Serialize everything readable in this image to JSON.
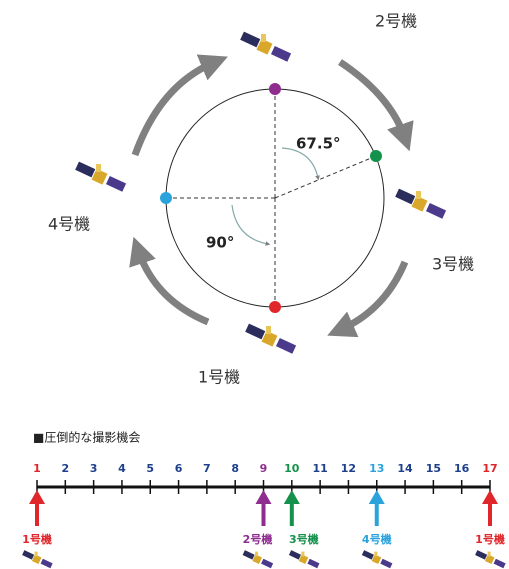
{
  "orbit": {
    "satellites": [
      "2号機",
      "3号機",
      "1号機",
      "4号機"
    ],
    "angles": [
      "67.5°",
      "90°"
    ]
  },
  "timeline": {
    "title": "■圧倒的な撮影機会",
    "ticks": [
      1,
      2,
      3,
      4,
      5,
      6,
      7,
      8,
      9,
      10,
      11,
      12,
      13,
      14,
      15,
      16,
      17
    ],
    "arrows": [
      {
        "label": "1号機",
        "color": "#e0262b"
      },
      {
        "label": "2号機",
        "color": "#8e2d8e"
      },
      {
        "label": "3号機",
        "color": "#14914a"
      },
      {
        "label": "4号機",
        "color": "#2aa3dd"
      },
      {
        "label": "1号機",
        "color": "#e0262b"
      }
    ]
  }
}
